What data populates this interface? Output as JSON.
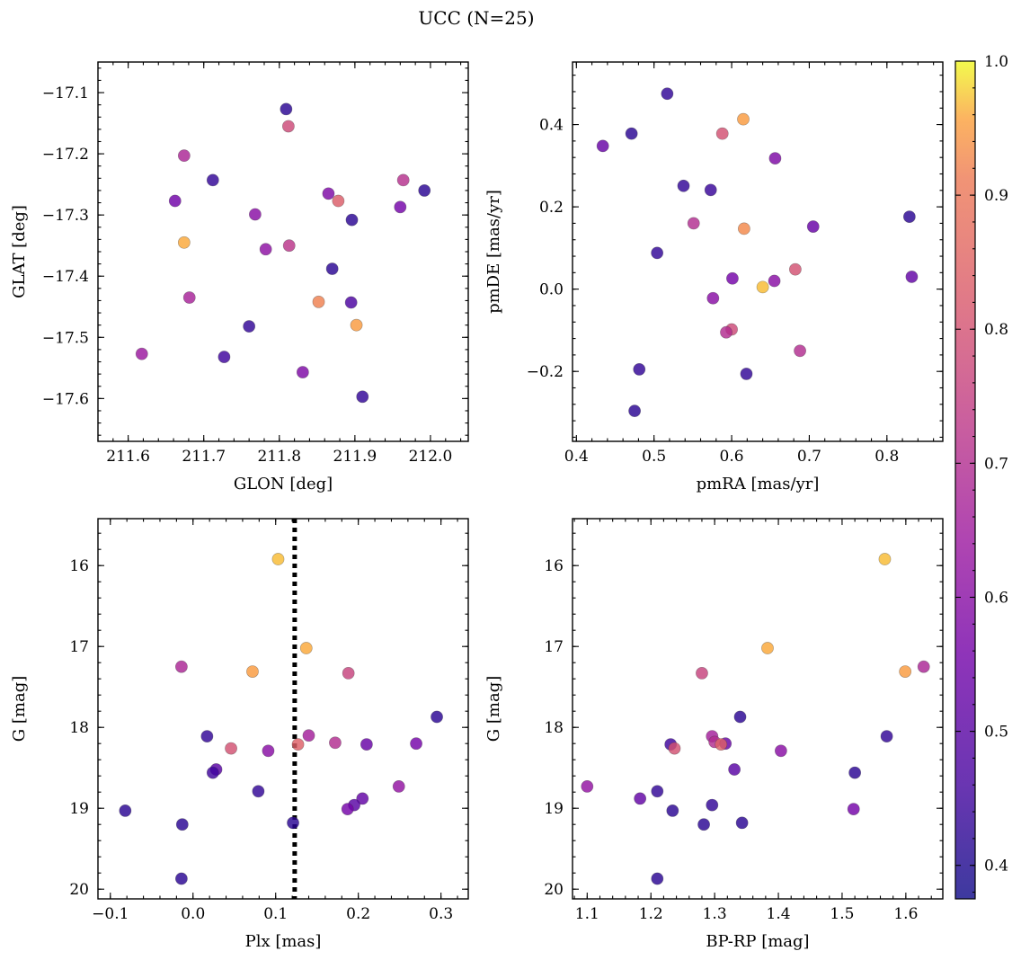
{
  "figure": {
    "title": "UCC (N=25)"
  },
  "chart_data": [
    {
      "type": "scatter",
      "xlabel": "GLON [deg]",
      "ylabel": "GLAT [deg]",
      "xlim": [
        211.56,
        212.05
      ],
      "ylim": [
        -17.67,
        -17.05
      ],
      "yinvert": false,
      "xticks": [
        211.6,
        211.7,
        211.8,
        211.9,
        212.0
      ],
      "xtick_labels": [
        "211.6",
        "211.7",
        "211.8",
        "211.9",
        "212.0"
      ],
      "yticks": [
        -17.6,
        -17.5,
        -17.4,
        -17.3,
        -17.2,
        -17.1
      ],
      "ytick_labels": [
        "−17.6",
        "−17.5",
        "−17.4",
        "−17.3",
        "−17.2",
        "−17.1"
      ],
      "points": [
        [
          211.809,
          -17.127,
          0.42
        ],
        [
          211.812,
          -17.155,
          0.78
        ],
        [
          211.674,
          -17.203,
          0.68
        ],
        [
          211.712,
          -17.243,
          0.43
        ],
        [
          211.964,
          -17.243,
          0.71
        ],
        [
          211.992,
          -17.26,
          0.42
        ],
        [
          211.865,
          -17.265,
          0.58
        ],
        [
          211.662,
          -17.277,
          0.55
        ],
        [
          211.878,
          -17.277,
          0.83
        ],
        [
          211.96,
          -17.287,
          0.56
        ],
        [
          211.768,
          -17.299,
          0.6
        ],
        [
          211.896,
          -17.308,
          0.42
        ],
        [
          211.674,
          -17.345,
          0.96
        ],
        [
          211.813,
          -17.35,
          0.72
        ],
        [
          211.782,
          -17.356,
          0.61
        ],
        [
          211.87,
          -17.388,
          0.42
        ],
        [
          211.681,
          -17.435,
          0.67
        ],
        [
          211.852,
          -17.442,
          0.92
        ],
        [
          211.895,
          -17.443,
          0.47
        ],
        [
          211.902,
          -17.48,
          0.95
        ],
        [
          211.76,
          -17.482,
          0.43
        ],
        [
          211.618,
          -17.527,
          0.64
        ],
        [
          211.727,
          -17.532,
          0.45
        ],
        [
          211.831,
          -17.557,
          0.58
        ],
        [
          211.91,
          -17.597,
          0.43
        ]
      ]
    },
    {
      "type": "scatter",
      "xlabel": "pmRA [mas/yr]",
      "ylabel": "pmDE [mas/yr]",
      "xlim": [
        0.395,
        0.872
      ],
      "ylim": [
        -0.37,
        0.552
      ],
      "yinvert": false,
      "xticks": [
        0.4,
        0.5,
        0.6,
        0.7,
        0.8
      ],
      "xtick_labels": [
        "0.4",
        "0.5",
        "0.6",
        "0.7",
        "0.8"
      ],
      "yticks": [
        -0.2,
        0.0,
        0.2,
        0.4
      ],
      "ytick_labels": [
        "−0.2",
        "0.0",
        "0.2",
        "0.4"
      ],
      "points": [
        [
          0.517,
          0.475,
          0.43
        ],
        [
          0.615,
          0.413,
          0.95
        ],
        [
          0.588,
          0.378,
          0.8
        ],
        [
          0.471,
          0.378,
          0.42
        ],
        [
          0.434,
          0.348,
          0.53
        ],
        [
          0.656,
          0.318,
          0.58
        ],
        [
          0.538,
          0.251,
          0.43
        ],
        [
          0.573,
          0.241,
          0.44
        ],
        [
          0.829,
          0.176,
          0.42
        ],
        [
          0.551,
          0.16,
          0.7
        ],
        [
          0.705,
          0.152,
          0.53
        ],
        [
          0.616,
          0.147,
          0.93
        ],
        [
          0.504,
          0.088,
          0.43
        ],
        [
          0.682,
          0.048,
          0.8
        ],
        [
          0.832,
          0.03,
          0.52
        ],
        [
          0.601,
          0.026,
          0.56
        ],
        [
          0.655,
          0.02,
          0.6
        ],
        [
          0.64,
          0.005,
          0.97
        ],
        [
          0.576,
          -0.022,
          0.6
        ],
        [
          0.6,
          -0.098,
          0.78
        ],
        [
          0.593,
          -0.105,
          0.7
        ],
        [
          0.688,
          -0.15,
          0.7
        ],
        [
          0.481,
          -0.195,
          0.43
        ],
        [
          0.619,
          -0.206,
          0.43
        ],
        [
          0.475,
          -0.296,
          0.42
        ]
      ]
    },
    {
      "type": "scatter",
      "xlabel": "Plx [mas]",
      "ylabel": "G [mag]",
      "xlim": [
        -0.115,
        0.333
      ],
      "ylim": [
        15.42,
        20.12
      ],
      "yinvert": true,
      "vline": 0.123,
      "xticks": [
        -0.1,
        0.0,
        0.1,
        0.2,
        0.3
      ],
      "xtick_labels": [
        "−0.1",
        "0.0",
        "0.1",
        "0.2",
        "0.3"
      ],
      "yticks": [
        16,
        17,
        18,
        19,
        20
      ],
      "ytick_labels": [
        "16",
        "17",
        "18",
        "19",
        "20"
      ],
      "points": [
        [
          0.103,
          15.92,
          0.97
        ],
        [
          0.137,
          17.02,
          0.96
        ],
        [
          -0.014,
          17.25,
          0.68
        ],
        [
          0.072,
          17.31,
          0.95
        ],
        [
          0.188,
          17.33,
          0.76
        ],
        [
          0.295,
          17.87,
          0.42
        ],
        [
          0.017,
          18.11,
          0.43
        ],
        [
          0.14,
          18.1,
          0.66
        ],
        [
          0.046,
          18.26,
          0.8
        ],
        [
          0.127,
          18.21,
          0.84
        ],
        [
          0.172,
          18.19,
          0.7
        ],
        [
          0.21,
          18.21,
          0.53
        ],
        [
          0.27,
          18.2,
          0.56
        ],
        [
          0.091,
          18.29,
          0.6
        ],
        [
          0.028,
          18.52,
          0.5
        ],
        [
          0.024,
          18.56,
          0.45
        ],
        [
          0.079,
          18.79,
          0.43
        ],
        [
          0.249,
          18.73,
          0.62
        ],
        [
          0.205,
          18.88,
          0.52
        ],
        [
          0.195,
          18.96,
          0.5
        ],
        [
          0.187,
          19.01,
          0.56
        ],
        [
          -0.082,
          19.03,
          0.42
        ],
        [
          -0.013,
          19.2,
          0.42
        ],
        [
          0.121,
          19.18,
          0.42
        ],
        [
          -0.014,
          19.87,
          0.42
        ]
      ]
    },
    {
      "type": "scatter",
      "xlabel": "BP-RP [mag]",
      "ylabel": "G [mag]",
      "xlim": [
        1.077,
        1.658
      ],
      "ylim": [
        15.42,
        20.12
      ],
      "yinvert": true,
      "xticks": [
        1.1,
        1.2,
        1.3,
        1.4,
        1.5,
        1.6
      ],
      "xtick_labels": [
        "1.1",
        "1.2",
        "1.3",
        "1.4",
        "1.5",
        "1.6"
      ],
      "yticks": [
        16,
        17,
        18,
        19,
        20
      ],
      "ytick_labels": [
        "16",
        "17",
        "18",
        "19",
        "20"
      ],
      "points": [
        [
          1.567,
          15.92,
          0.97
        ],
        [
          1.383,
          17.02,
          0.96
        ],
        [
          1.28,
          17.33,
          0.76
        ],
        [
          1.599,
          17.31,
          0.95
        ],
        [
          1.628,
          17.25,
          0.68
        ],
        [
          1.34,
          17.87,
          0.42
        ],
        [
          1.57,
          18.11,
          0.43
        ],
        [
          1.296,
          18.11,
          0.66
        ],
        [
          1.3,
          18.18,
          0.7
        ],
        [
          1.317,
          18.2,
          0.53
        ],
        [
          1.31,
          18.21,
          0.84
        ],
        [
          1.231,
          18.21,
          0.45
        ],
        [
          1.237,
          18.26,
          0.8
        ],
        [
          1.404,
          18.29,
          0.6
        ],
        [
          1.331,
          18.52,
          0.5
        ],
        [
          1.52,
          18.56,
          0.42
        ],
        [
          1.1,
          18.73,
          0.62
        ],
        [
          1.21,
          18.79,
          0.43
        ],
        [
          1.183,
          18.88,
          0.52
        ],
        [
          1.296,
          18.96,
          0.43
        ],
        [
          1.518,
          19.01,
          0.56
        ],
        [
          1.234,
          19.03,
          0.42
        ],
        [
          1.283,
          19.2,
          0.42
        ],
        [
          1.343,
          19.18,
          0.42
        ],
        [
          1.21,
          19.87,
          0.42
        ]
      ]
    }
  ],
  "colorbar": {
    "range": [
      0.375,
      1.0
    ],
    "colormap": "plasma",
    "ticks": [
      0.4,
      0.5,
      0.6,
      0.7,
      0.8,
      0.9,
      1.0
    ],
    "tick_labels": [
      "0.4",
      "0.5",
      "0.6",
      "0.7",
      "0.8",
      "0.9",
      "1.0"
    ]
  }
}
